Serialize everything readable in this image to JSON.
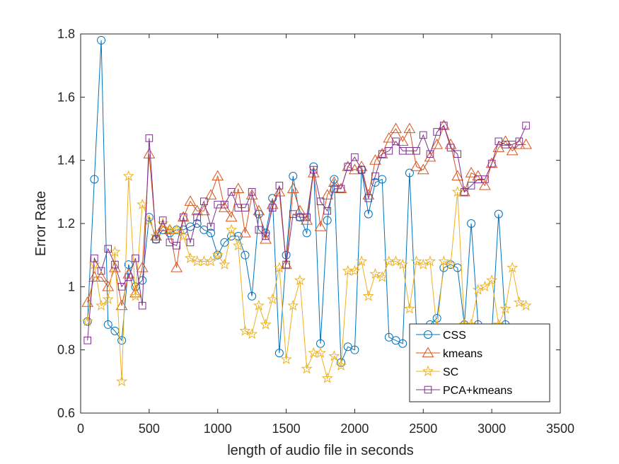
{
  "chart_data": {
    "type": "line",
    "xlabel": "length of audio file in seconds",
    "ylabel": "Error Rate",
    "xlim": [
      0,
      3500
    ],
    "ylim": [
      0.6,
      1.8
    ],
    "xticks": [
      0,
      500,
      1000,
      1500,
      2000,
      2500,
      3000,
      3500
    ],
    "yticks": [
      0.6,
      0.8,
      1.0,
      1.2,
      1.4,
      1.6,
      1.8
    ],
    "xtick_labels": [
      "0",
      "500",
      "1000",
      "1500",
      "2000",
      "2500",
      "3000",
      "3500"
    ],
    "ytick_labels": [
      "0.6",
      "0.8",
      "1",
      "1.2",
      "1.4",
      "1.6",
      "1.8"
    ],
    "grid": false,
    "legend_position": "bottom-right",
    "x": [
      50,
      100,
      150,
      200,
      250,
      300,
      350,
      400,
      450,
      500,
      550,
      600,
      650,
      700,
      750,
      800,
      850,
      900,
      950,
      1000,
      1050,
      1100,
      1150,
      1200,
      1250,
      1300,
      1350,
      1400,
      1450,
      1500,
      1550,
      1600,
      1650,
      1700,
      1750,
      1800,
      1850,
      1900,
      1950,
      2000,
      2050,
      2100,
      2150,
      2200,
      2250,
      2300,
      2350,
      2400,
      2450,
      2500,
      2550,
      2600,
      2650,
      2700,
      2750,
      2800,
      2850,
      2900,
      2950,
      3000,
      3050,
      3100,
      3150,
      3200,
      3250
    ],
    "series": [
      {
        "name": "CSS",
        "color": "#0072BD",
        "marker": "circle",
        "values": [
          0.89,
          1.34,
          1.78,
          0.88,
          0.86,
          0.83,
          1.07,
          1.0,
          1.02,
          1.22,
          1.15,
          1.18,
          1.17,
          1.18,
          1.18,
          1.19,
          1.2,
          1.18,
          1.17,
          1.1,
          1.14,
          1.16,
          1.16,
          1.1,
          0.97,
          1.23,
          1.17,
          1.28,
          0.79,
          1.1,
          1.35,
          1.22,
          1.17,
          1.38,
          0.82,
          1.21,
          1.34,
          0.76,
          0.81,
          0.8,
          1.37,
          1.23,
          1.33,
          1.34,
          0.84,
          0.83,
          0.82,
          1.36,
          0.87,
          0.85,
          0.88,
          0.9,
          1.06,
          1.07,
          1.06,
          0.88,
          1.2,
          0.88,
          0.86,
          0.85,
          1.23,
          0.88,
          0.86,
          0.87,
          0.86
        ]
      },
      {
        "name": "kmeans",
        "color": "#D95319",
        "marker": "triangle",
        "values": [
          0.95,
          1.03,
          1.03,
          1.0,
          1.06,
          0.94,
          1.04,
          0.98,
          1.06,
          1.42,
          1.16,
          1.19,
          1.18,
          1.06,
          1.22,
          1.27,
          1.24,
          1.24,
          1.29,
          1.35,
          1.25,
          1.22,
          1.31,
          1.17,
          1.29,
          1.24,
          1.15,
          1.26,
          1.3,
          1.07,
          1.31,
          1.24,
          1.21,
          1.36,
          1.19,
          1.29,
          1.33,
          1.31,
          1.38,
          1.37,
          1.38,
          1.29,
          1.4,
          1.42,
          1.47,
          1.5,
          1.46,
          1.5,
          1.38,
          1.37,
          1.41,
          1.45,
          1.51,
          1.45,
          1.35,
          1.3,
          1.36,
          1.35,
          1.32,
          1.39,
          1.44,
          1.46,
          1.43,
          1.45,
          1.45
        ]
      },
      {
        "name": "SC",
        "color": "#EDB120",
        "marker": "star",
        "values": [
          0.89,
          1.07,
          0.94,
          0.96,
          1.11,
          0.7,
          1.35,
          0.97,
          1.26,
          1.21,
          1.16,
          1.2,
          1.18,
          1.18,
          1.16,
          1.09,
          1.08,
          1.08,
          1.08,
          1.1,
          1.07,
          1.18,
          1.13,
          0.86,
          0.85,
          0.94,
          0.88,
          0.96,
          1.06,
          0.77,
          0.94,
          1.02,
          0.74,
          0.79,
          0.79,
          0.71,
          0.78,
          0.75,
          1.05,
          1.05,
          1.08,
          0.97,
          1.04,
          1.03,
          1.08,
          1.08,
          1.07,
          0.93,
          1.08,
          1.07,
          1.08,
          0.86,
          1.08,
          1.07,
          1.3,
          0.88,
          0.88,
          0.99,
          1.0,
          1.02,
          0.88,
          0.93,
          1.06,
          0.95,
          0.94
        ]
      },
      {
        "name": "PCA+kmeans",
        "color": "#7E2F8E",
        "marker": "square",
        "values": [
          0.83,
          1.09,
          1.05,
          1.12,
          1.07,
          1.0,
          1.03,
          1.09,
          0.94,
          1.47,
          1.15,
          1.21,
          1.14,
          1.13,
          1.22,
          1.14,
          1.22,
          1.27,
          1.19,
          1.26,
          1.26,
          1.3,
          1.25,
          1.25,
          1.3,
          1.18,
          1.16,
          1.25,
          1.32,
          1.07,
          1.23,
          1.22,
          1.22,
          1.37,
          1.27,
          1.24,
          1.31,
          1.31,
          1.38,
          1.41,
          1.37,
          1.28,
          1.35,
          1.42,
          1.43,
          1.46,
          1.43,
          1.43,
          1.43,
          1.48,
          1.42,
          1.49,
          1.51,
          1.44,
          1.42,
          1.3,
          1.32,
          1.34,
          1.34,
          1.39,
          1.46,
          1.45,
          1.45,
          1.46,
          1.51
        ]
      }
    ]
  }
}
